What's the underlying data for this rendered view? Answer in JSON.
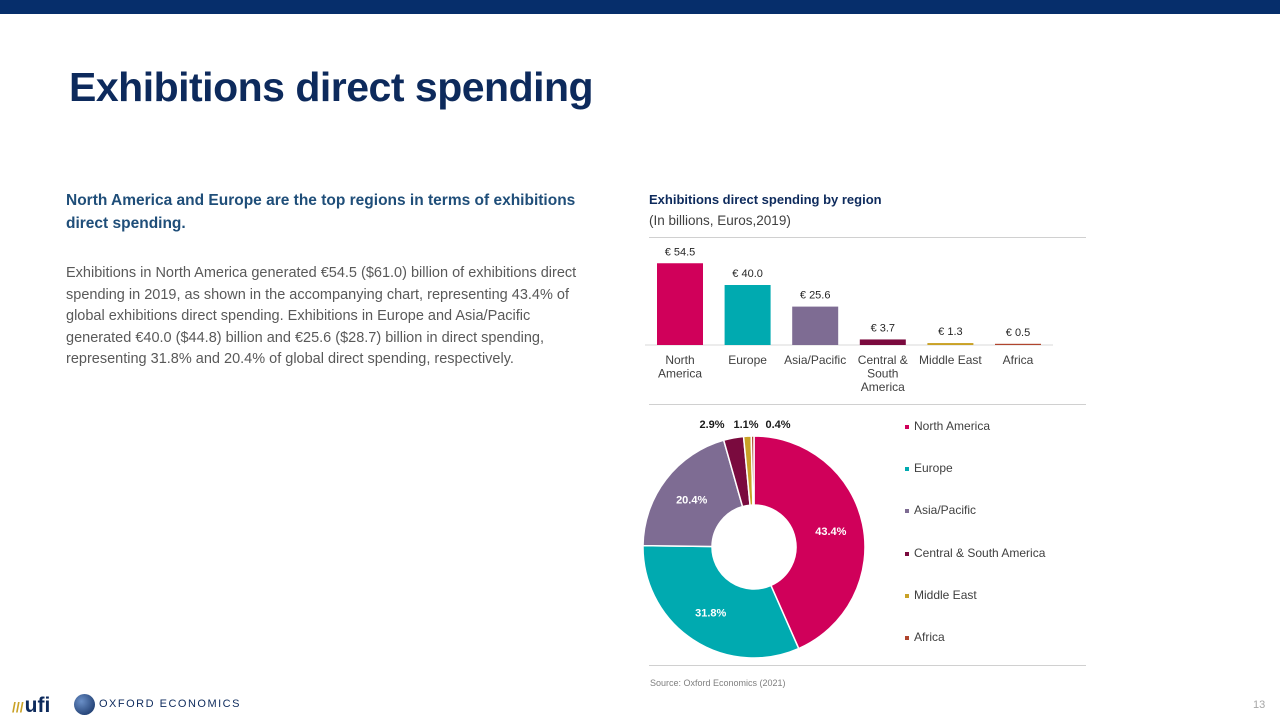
{
  "header": {
    "title": "Exhibitions direct spending"
  },
  "text": {
    "lead": "North America and Europe are the top regions in terms of exhibitions direct spending.",
    "body": "Exhibitions in North America generated €54.5 ($61.0) billion of exhibitions direct spending in 2019, as shown in the accompanying chart, representing 43.4% of global exhibitions direct spending. Exhibitions in Europe and Asia/Pacific generated €40.0 ($44.8) billion and €25.6 ($28.7) billion in direct spending, representing 31.8% and 20.4% of global direct spending, respectively."
  },
  "chart_data": [
    {
      "type": "bar",
      "title": "Exhibitions direct spending by region",
      "subtitle": "(In billions, Euros,2019)",
      "categories": [
        "North America",
        "Europe",
        "Asia/Pacific",
        "Central & South America",
        "Middle East",
        "Africa"
      ],
      "category_lines": [
        [
          "North",
          "America"
        ],
        [
          "Europe"
        ],
        [
          "Asia/Pacific"
        ],
        [
          "Central &",
          "South",
          "America"
        ],
        [
          "Middle East"
        ],
        [
          "Africa"
        ]
      ],
      "values": [
        54.5,
        40.0,
        25.6,
        3.7,
        1.3,
        0.5
      ],
      "value_labels": [
        "€ 54.5",
        "€ 40.0",
        "€ 25.6",
        "€ 3.7",
        "€ 1.3",
        "€ 0.5"
      ],
      "colors": [
        "#d0005a",
        "#00aab0",
        "#7e6c93",
        "#7a0a3e",
        "#c9a227",
        "#b0452e"
      ],
      "ylim": [
        0,
        60
      ]
    },
    {
      "type": "pie",
      "donut": true,
      "labels": [
        "North America",
        "Europe",
        "Asia/Pacific",
        "Central & South America",
        "Middle East",
        "Africa"
      ],
      "values": [
        43.4,
        31.8,
        20.4,
        2.9,
        1.1,
        0.4
      ],
      "value_labels": [
        "43.4%",
        "31.8%",
        "20.4%",
        "2.9%",
        "1.1%",
        "0.4%"
      ],
      "colors": [
        "#d0005a",
        "#00aab0",
        "#7e6c93",
        "#7a0a3e",
        "#c9a227",
        "#b0452e"
      ],
      "legend_position": "right"
    }
  ],
  "footer": {
    "source": "Source: Oxford Economics (2021)",
    "page_number": "13",
    "logo_ufi": "ufi",
    "logo_oxford": "OXFORD ECONOMICS"
  }
}
